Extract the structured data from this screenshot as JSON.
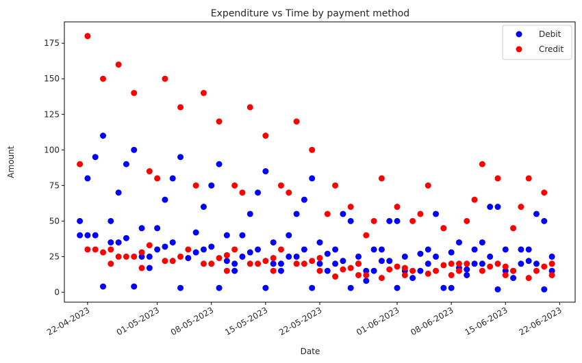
{
  "chart_data": {
    "type": "scatter",
    "title": "Expenditure vs Time by payment method",
    "xlabel": "Date",
    "ylabel": "Amount",
    "xlim": [
      "2023-04-19",
      "2023-06-24"
    ],
    "ylim": [
      -7,
      190
    ],
    "x_ticks": [
      "2023-04-22",
      "2023-05-01",
      "2023-05-08",
      "2023-05-15",
      "2023-05-22",
      "2023-06-01",
      "2023-06-08",
      "2023-06-15",
      "2023-06-22"
    ],
    "x_tick_labels": [
      "22-04-2023",
      "01-05-2023",
      "08-05-2023",
      "15-05-2023",
      "22-05-2023",
      "01-06-2023",
      "08-06-2023",
      "15-06-2023",
      "22-06-2023"
    ],
    "y_ticks": [
      0,
      25,
      50,
      75,
      100,
      125,
      150,
      175
    ],
    "legend_position": "top-right",
    "grid": false,
    "series": [
      {
        "name": "Debit",
        "color": "#0000ff",
        "points": [
          [
            "2023-04-21",
            40
          ],
          [
            "2023-04-21",
            50
          ],
          [
            "2023-04-22",
            40
          ],
          [
            "2023-04-22",
            80
          ],
          [
            "2023-04-23",
            40
          ],
          [
            "2023-04-23",
            95
          ],
          [
            "2023-04-24",
            4
          ],
          [
            "2023-04-24",
            110
          ],
          [
            "2023-04-25",
            35
          ],
          [
            "2023-04-25",
            50
          ],
          [
            "2023-04-26",
            35
          ],
          [
            "2023-04-26",
            70
          ],
          [
            "2023-04-27",
            38
          ],
          [
            "2023-04-27",
            90
          ],
          [
            "2023-04-28",
            4
          ],
          [
            "2023-04-28",
            100
          ],
          [
            "2023-04-29",
            25
          ],
          [
            "2023-04-29",
            45
          ],
          [
            "2023-04-30",
            17
          ],
          [
            "2023-04-30",
            25
          ],
          [
            "2023-05-01",
            30
          ],
          [
            "2023-05-01",
            45
          ],
          [
            "2023-05-02",
            32
          ],
          [
            "2023-05-02",
            65
          ],
          [
            "2023-05-03",
            35
          ],
          [
            "2023-05-03",
            80
          ],
          [
            "2023-05-04",
            3
          ],
          [
            "2023-05-04",
            95
          ],
          [
            "2023-05-05",
            24
          ],
          [
            "2023-05-06",
            28
          ],
          [
            "2023-05-06",
            42
          ],
          [
            "2023-05-07",
            30
          ],
          [
            "2023-05-07",
            60
          ],
          [
            "2023-05-08",
            32
          ],
          [
            "2023-05-08",
            75
          ],
          [
            "2023-05-09",
            3
          ],
          [
            "2023-05-09",
            90
          ],
          [
            "2023-05-10",
            22
          ],
          [
            "2023-05-10",
            40
          ],
          [
            "2023-05-11",
            15
          ],
          [
            "2023-05-11",
            20
          ],
          [
            "2023-05-12",
            25
          ],
          [
            "2023-05-12",
            40
          ],
          [
            "2023-05-13",
            28
          ],
          [
            "2023-05-13",
            55
          ],
          [
            "2023-05-14",
            30
          ],
          [
            "2023-05-14",
            70
          ],
          [
            "2023-05-15",
            3
          ],
          [
            "2023-05-15",
            85
          ],
          [
            "2023-05-16",
            20
          ],
          [
            "2023-05-16",
            35
          ],
          [
            "2023-05-17",
            15
          ],
          [
            "2023-05-17",
            20
          ],
          [
            "2023-05-18",
            25
          ],
          [
            "2023-05-18",
            40
          ],
          [
            "2023-05-19",
            25
          ],
          [
            "2023-05-19",
            55
          ],
          [
            "2023-05-20",
            30
          ],
          [
            "2023-05-20",
            65
          ],
          [
            "2023-05-21",
            3
          ],
          [
            "2023-05-21",
            80
          ],
          [
            "2023-05-22",
            20
          ],
          [
            "2023-05-22",
            35
          ],
          [
            "2023-05-23",
            15
          ],
          [
            "2023-05-23",
            27
          ],
          [
            "2023-05-24",
            20
          ],
          [
            "2023-05-24",
            30
          ],
          [
            "2023-05-25",
            22
          ],
          [
            "2023-05-25",
            55
          ],
          [
            "2023-05-26",
            3
          ],
          [
            "2023-05-26",
            50
          ],
          [
            "2023-05-27",
            20
          ],
          [
            "2023-05-27",
            25
          ],
          [
            "2023-05-28",
            8
          ],
          [
            "2023-05-28",
            15
          ],
          [
            "2023-05-29",
            15
          ],
          [
            "2023-05-29",
            30
          ],
          [
            "2023-05-30",
            22
          ],
          [
            "2023-05-30",
            30
          ],
          [
            "2023-05-31",
            22
          ],
          [
            "2023-05-31",
            50
          ],
          [
            "2023-06-01",
            3
          ],
          [
            "2023-06-01",
            50
          ],
          [
            "2023-06-02",
            15
          ],
          [
            "2023-06-02",
            25
          ],
          [
            "2023-06-03",
            10
          ],
          [
            "2023-06-04",
            15
          ],
          [
            "2023-06-04",
            27
          ],
          [
            "2023-06-05",
            20
          ],
          [
            "2023-06-05",
            30
          ],
          [
            "2023-06-06",
            25
          ],
          [
            "2023-06-06",
            55
          ],
          [
            "2023-06-07",
            3
          ],
          [
            "2023-06-07",
            45
          ],
          [
            "2023-06-08",
            3
          ],
          [
            "2023-06-08",
            28
          ],
          [
            "2023-06-09",
            17
          ],
          [
            "2023-06-09",
            35
          ],
          [
            "2023-06-10",
            12
          ],
          [
            "2023-06-10",
            16
          ],
          [
            "2023-06-11",
            20
          ],
          [
            "2023-06-11",
            30
          ],
          [
            "2023-06-12",
            20
          ],
          [
            "2023-06-12",
            35
          ],
          [
            "2023-06-13",
            25
          ],
          [
            "2023-06-13",
            60
          ],
          [
            "2023-06-14",
            2
          ],
          [
            "2023-06-14",
            60
          ],
          [
            "2023-06-15",
            15
          ],
          [
            "2023-06-15",
            30
          ],
          [
            "2023-06-16",
            10
          ],
          [
            "2023-06-16",
            15
          ],
          [
            "2023-06-17",
            20
          ],
          [
            "2023-06-17",
            30
          ],
          [
            "2023-06-18",
            22
          ],
          [
            "2023-06-18",
            30
          ],
          [
            "2023-06-19",
            20
          ],
          [
            "2023-06-19",
            55
          ],
          [
            "2023-06-20",
            2
          ],
          [
            "2023-06-20",
            50
          ],
          [
            "2023-06-21",
            15
          ],
          [
            "2023-06-21",
            25
          ]
        ]
      },
      {
        "name": "Credit",
        "color": "#ff0000",
        "points": [
          [
            "2023-04-21",
            90
          ],
          [
            "2023-04-22",
            30
          ],
          [
            "2023-04-22",
            180
          ],
          [
            "2023-04-23",
            30
          ],
          [
            "2023-04-24",
            28
          ],
          [
            "2023-04-24",
            150
          ],
          [
            "2023-04-25",
            20
          ],
          [
            "2023-04-25",
            30
          ],
          [
            "2023-04-26",
            25
          ],
          [
            "2023-04-26",
            160
          ],
          [
            "2023-04-27",
            25
          ],
          [
            "2023-04-28",
            25
          ],
          [
            "2023-04-28",
            140
          ],
          [
            "2023-04-29",
            17
          ],
          [
            "2023-04-29",
            28
          ],
          [
            "2023-04-30",
            33
          ],
          [
            "2023-04-30",
            85
          ],
          [
            "2023-05-01",
            80
          ],
          [
            "2023-05-02",
            22
          ],
          [
            "2023-05-02",
            150
          ],
          [
            "2023-05-03",
            22
          ],
          [
            "2023-05-04",
            25
          ],
          [
            "2023-05-04",
            130
          ],
          [
            "2023-05-05",
            30
          ],
          [
            "2023-05-06",
            75
          ],
          [
            "2023-05-07",
            20
          ],
          [
            "2023-05-07",
            140
          ],
          [
            "2023-05-08",
            20
          ],
          [
            "2023-05-09",
            24
          ],
          [
            "2023-05-09",
            120
          ],
          [
            "2023-05-10",
            15
          ],
          [
            "2023-05-10",
            26
          ],
          [
            "2023-05-11",
            30
          ],
          [
            "2023-05-11",
            75
          ],
          [
            "2023-05-12",
            70
          ],
          [
            "2023-05-13",
            20
          ],
          [
            "2023-05-13",
            130
          ],
          [
            "2023-05-14",
            20
          ],
          [
            "2023-05-15",
            22
          ],
          [
            "2023-05-15",
            110
          ],
          [
            "2023-05-16",
            15
          ],
          [
            "2023-05-16",
            24
          ],
          [
            "2023-05-17",
            30
          ],
          [
            "2023-05-17",
            75
          ],
          [
            "2023-05-18",
            70
          ],
          [
            "2023-05-19",
            20
          ],
          [
            "2023-05-19",
            120
          ],
          [
            "2023-05-20",
            20
          ],
          [
            "2023-05-21",
            22
          ],
          [
            "2023-05-21",
            100
          ],
          [
            "2023-05-22",
            15
          ],
          [
            "2023-05-22",
            24
          ],
          [
            "2023-05-23",
            55
          ],
          [
            "2023-05-24",
            11
          ],
          [
            "2023-05-24",
            75
          ],
          [
            "2023-05-25",
            16
          ],
          [
            "2023-05-26",
            17
          ],
          [
            "2023-05-26",
            60
          ],
          [
            "2023-05-27",
            12
          ],
          [
            "2023-05-27",
            20
          ],
          [
            "2023-05-28",
            12
          ],
          [
            "2023-05-28",
            40
          ],
          [
            "2023-05-29",
            50
          ],
          [
            "2023-05-30",
            10
          ],
          [
            "2023-05-30",
            80
          ],
          [
            "2023-05-31",
            16
          ],
          [
            "2023-06-01",
            18
          ],
          [
            "2023-06-01",
            60
          ],
          [
            "2023-06-02",
            12
          ],
          [
            "2023-06-02",
            17
          ],
          [
            "2023-06-03",
            15
          ],
          [
            "2023-06-03",
            50
          ],
          [
            "2023-06-04",
            55
          ],
          [
            "2023-06-05",
            13
          ],
          [
            "2023-06-05",
            75
          ],
          [
            "2023-06-06",
            15
          ],
          [
            "2023-06-07",
            19
          ],
          [
            "2023-06-07",
            45
          ],
          [
            "2023-06-08",
            12
          ],
          [
            "2023-06-08",
            20
          ],
          [
            "2023-06-09",
            15
          ],
          [
            "2023-06-09",
            20
          ],
          [
            "2023-06-10",
            20
          ],
          [
            "2023-06-10",
            50
          ],
          [
            "2023-06-11",
            65
          ],
          [
            "2023-06-12",
            15
          ],
          [
            "2023-06-12",
            90
          ],
          [
            "2023-06-13",
            18
          ],
          [
            "2023-06-14",
            20
          ],
          [
            "2023-06-14",
            80
          ],
          [
            "2023-06-15",
            12
          ],
          [
            "2023-06-15",
            18
          ],
          [
            "2023-06-16",
            15
          ],
          [
            "2023-06-16",
            45
          ],
          [
            "2023-06-17",
            60
          ],
          [
            "2023-06-18",
            10
          ],
          [
            "2023-06-18",
            80
          ],
          [
            "2023-06-19",
            15
          ],
          [
            "2023-06-20",
            18
          ],
          [
            "2023-06-20",
            70
          ],
          [
            "2023-06-21",
            12
          ],
          [
            "2023-06-21",
            20
          ]
        ]
      }
    ]
  }
}
